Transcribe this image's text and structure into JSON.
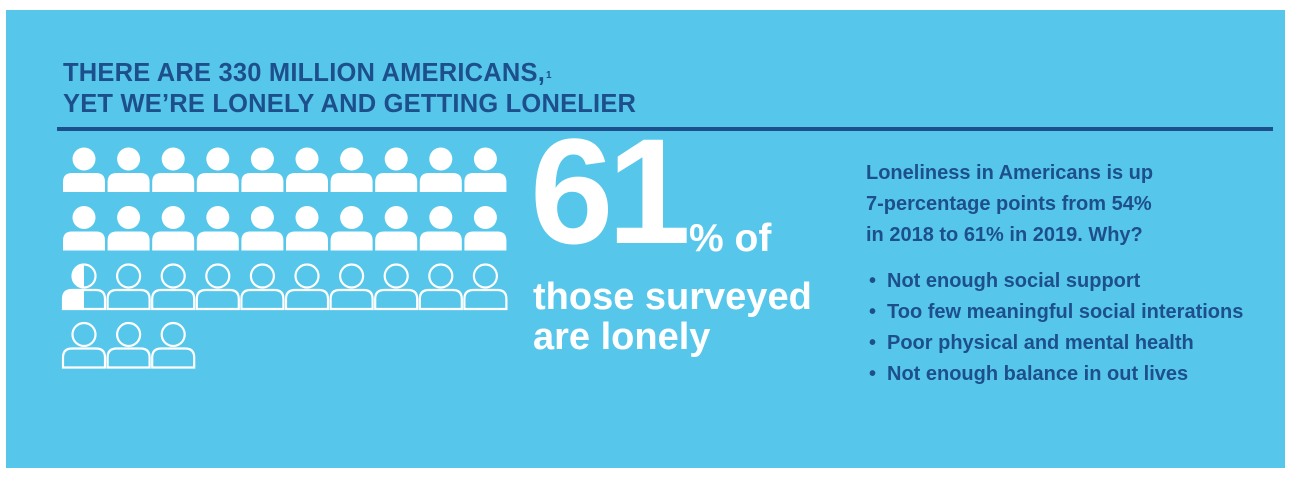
{
  "headline": {
    "line1": "THERE ARE 330 MILLION AMERICANS,",
    "footnote": "1",
    "line2": "YET WE’RE LONELY AND GETTING LONELIER"
  },
  "stat": {
    "value": "61",
    "suffix": "% of",
    "caption_line1": "those surveyed",
    "caption_line2": "are lonely"
  },
  "people_icons": {
    "total": 33,
    "filled": 20,
    "partial_fill_fraction": 0.5,
    "per_row": 10,
    "icon_name": "person-icon"
  },
  "explanation": {
    "lines": [
      "Loneliness in Americans is up",
      "7-percentage points from 54%",
      "in 2018 to 61% in 2019. Why?"
    ],
    "reasons": [
      "Not enough social support",
      "Too few meaningful social interations",
      "Poor physical and mental health",
      "Not enough balance in out lives"
    ]
  },
  "colors": {
    "background": "#56c7ea",
    "accent": "#1d4f8c",
    "icon": "#ffffff"
  }
}
